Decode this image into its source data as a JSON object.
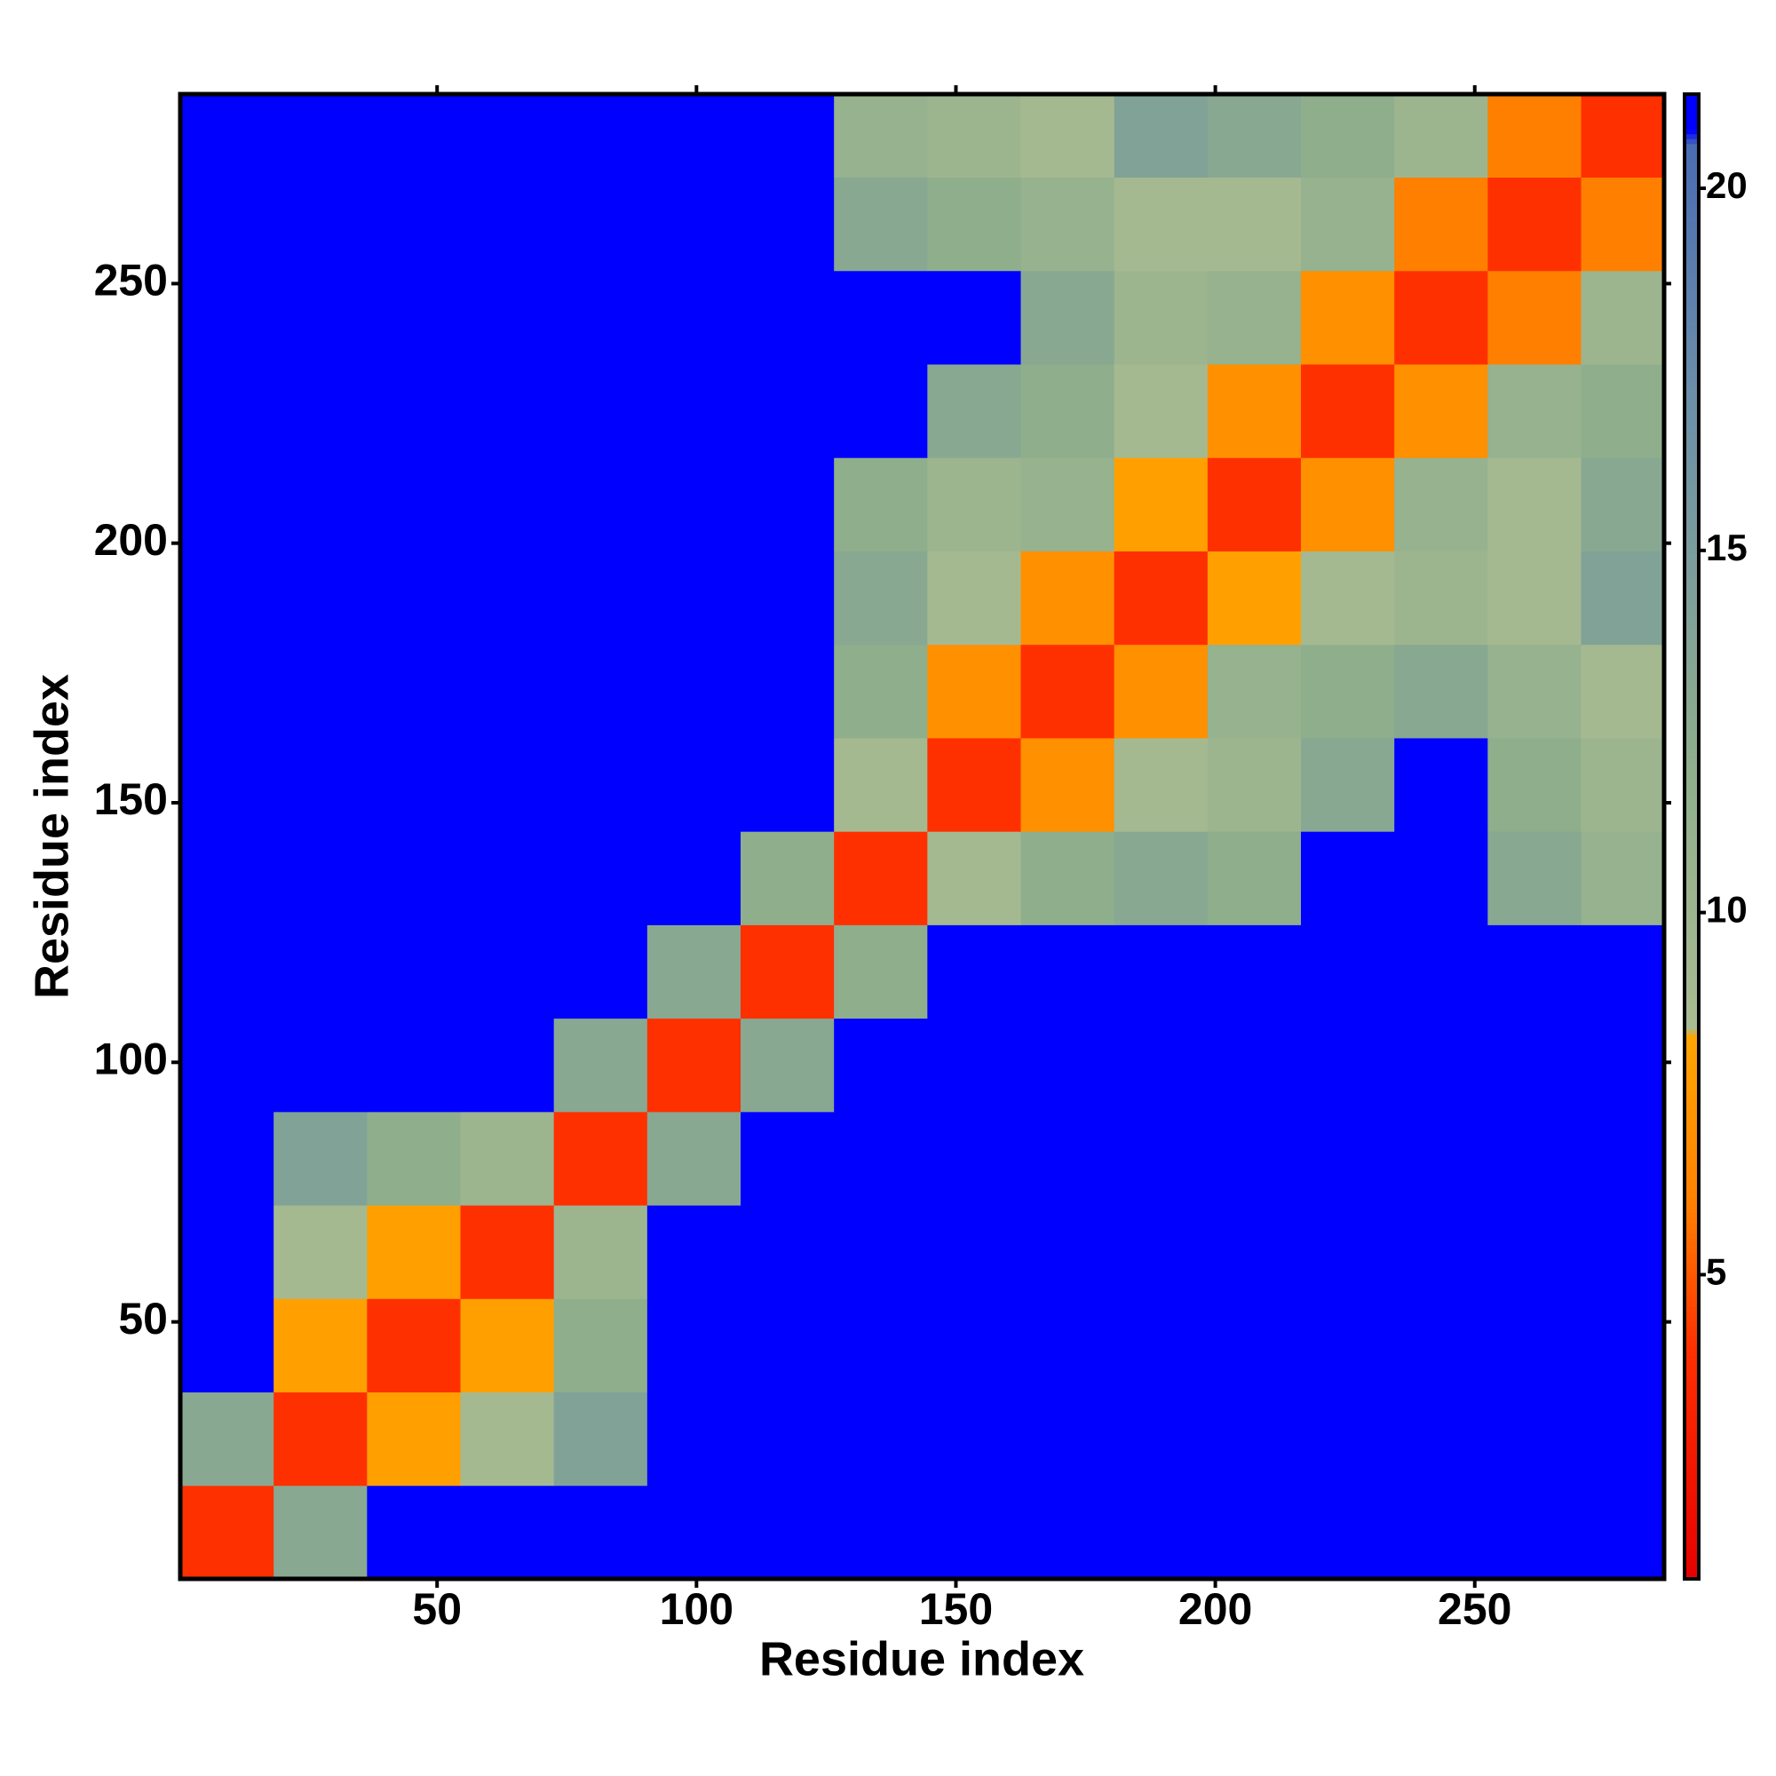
{
  "chart_data": {
    "type": "heatmap",
    "xlabel": "Residue index",
    "ylabel": "Residue index",
    "xlim": [
      0.5,
      286.5
    ],
    "ylim": [
      0.5,
      286.5
    ],
    "xticks": [
      50,
      100,
      150,
      200,
      250
    ],
    "yticks": [
      50,
      100,
      150,
      200,
      250
    ],
    "x_edges": [
      0.5,
      18.5,
      36.5,
      54.5,
      72.5,
      90.5,
      108.5,
      126.5,
      144.5,
      162.5,
      180.5,
      198.5,
      216.5,
      234.5,
      252.5,
      270.5,
      286.5
    ],
    "y_edges": [
      0.5,
      18.5,
      36.5,
      54.5,
      72.5,
      90.5,
      108.5,
      126.5,
      144.5,
      162.5,
      180.5,
      198.5,
      216.5,
      234.5,
      252.5,
      270.5,
      286.5
    ],
    "z": [
      [
        4,
        13,
        21,
        21,
        21,
        21,
        21,
        21,
        21,
        21,
        21,
        21,
        21,
        21,
        21,
        21
      ],
      [
        13,
        4,
        8,
        9,
        14,
        21,
        21,
        21,
        21,
        21,
        21,
        21,
        21,
        21,
        21,
        21
      ],
      [
        21,
        8,
        4,
        8,
        12,
        21,
        21,
        21,
        21,
        21,
        21,
        21,
        21,
        21,
        21,
        21
      ],
      [
        21,
        9,
        8,
        4,
        10,
        21,
        21,
        21,
        21,
        21,
        21,
        21,
        21,
        21,
        21,
        21
      ],
      [
        21,
        14,
        12,
        10,
        4,
        13,
        21,
        21,
        21,
        21,
        21,
        21,
        21,
        21,
        21,
        21
      ],
      [
        21,
        21,
        21,
        21,
        13,
        4,
        13,
        21,
        21,
        21,
        21,
        21,
        21,
        21,
        21,
        21
      ],
      [
        21,
        21,
        21,
        21,
        21,
        13,
        4,
        12,
        21,
        21,
        21,
        21,
        21,
        21,
        21,
        21
      ],
      [
        21,
        21,
        21,
        21,
        21,
        21,
        12,
        4,
        9,
        12,
        13,
        12,
        21,
        21,
        13,
        11
      ],
      [
        21,
        21,
        21,
        21,
        21,
        21,
        21,
        9,
        4,
        7,
        9,
        10,
        13,
        21,
        12,
        10
      ],
      [
        21,
        21,
        21,
        21,
        21,
        21,
        21,
        12,
        7,
        4,
        7,
        11,
        12,
        13,
        11,
        9
      ],
      [
        21,
        21,
        21,
        21,
        21,
        21,
        21,
        13,
        9,
        7,
        4,
        8,
        9,
        10,
        9,
        14
      ],
      [
        21,
        21,
        21,
        21,
        21,
        21,
        21,
        12,
        10,
        11,
        8,
        4,
        7,
        11,
        9,
        13
      ],
      [
        21,
        21,
        21,
        21,
        21,
        21,
        21,
        21,
        13,
        12,
        9,
        7,
        4,
        7,
        11,
        12
      ],
      [
        21,
        21,
        21,
        21,
        21,
        21,
        21,
        21,
        21,
        13,
        10,
        11,
        7,
        4,
        6,
        10
      ],
      [
        21,
        21,
        21,
        21,
        21,
        21,
        21,
        13,
        12,
        11,
        9,
        9,
        11,
        6,
        4,
        6
      ],
      [
        21,
        21,
        21,
        21,
        21,
        21,
        21,
        11,
        10,
        9,
        14,
        13,
        12,
        10,
        6,
        4
      ]
    ],
    "clim": [
      0.8,
      21.3
    ],
    "cticks": [
      5,
      10,
      15,
      20
    ],
    "colorscale": [
      {
        "value": 0.8,
        "color": "#e60000"
      },
      {
        "value": 4,
        "color": "#ff3000"
      },
      {
        "value": 6,
        "color": "#ff8000"
      },
      {
        "value": 8.3,
        "color": "#ffa500"
      },
      {
        "value": 8.4,
        "color": "#a9bb92"
      },
      {
        "value": 12,
        "color": "#8fae8c"
      },
      {
        "value": 17,
        "color": "#6d90a8"
      },
      {
        "value": 20.6,
        "color": "#4a6cb4"
      },
      {
        "value": 20.8,
        "color": "#0000ff"
      },
      {
        "value": 21.3,
        "color": "#0000ff"
      }
    ]
  }
}
